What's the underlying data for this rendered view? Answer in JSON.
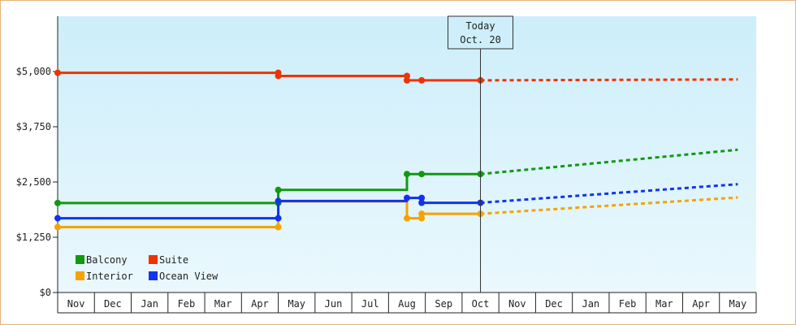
{
  "chart_data": {
    "type": "line",
    "ylim": [
      0,
      6250
    ],
    "y_ticks": [
      {
        "value": 0,
        "label": "$0"
      },
      {
        "value": 1250,
        "label": "$1,250"
      },
      {
        "value": 2500,
        "label": "$2,500"
      },
      {
        "value": 3750,
        "label": "$3,750"
      },
      {
        "value": 5000,
        "label": "$5,000"
      }
    ],
    "x_labels": [
      "Nov",
      "Dec",
      "Jan",
      "Feb",
      "Mar",
      "Apr",
      "May",
      "Jun",
      "Jul",
      "Aug",
      "Sep",
      "Oct",
      "Nov",
      "Dec",
      "Jan",
      "Feb",
      "Mar",
      "Apr",
      "May"
    ],
    "today": {
      "line1": "Today",
      "line2": "Oct. 20",
      "x": 11.5
    },
    "grid": false,
    "legend_position": "bottom-left",
    "background_gradient": [
      "#cdeefa",
      "#eaf8fd"
    ],
    "series": [
      {
        "name": "Balcony",
        "color": "#119911",
        "actual": [
          [
            0,
            2025
          ],
          [
            6,
            2025
          ],
          [
            6,
            2320
          ],
          [
            9.5,
            2320
          ],
          [
            9.5,
            2680
          ],
          [
            9.9,
            2680
          ],
          [
            11.5,
            2680
          ]
        ],
        "markers": [
          [
            0,
            2025
          ],
          [
            6,
            2025
          ],
          [
            6,
            2320
          ],
          [
            9.5,
            2680
          ],
          [
            9.9,
            2680
          ],
          [
            11.5,
            2680
          ]
        ],
        "forecast": [
          [
            11.5,
            2680
          ],
          [
            18.5,
            3230
          ]
        ]
      },
      {
        "name": "Suite",
        "color": "#ee3300",
        "actual": [
          [
            0,
            4970
          ],
          [
            6,
            4970
          ],
          [
            6,
            4900
          ],
          [
            9.5,
            4900
          ],
          [
            9.5,
            4800
          ],
          [
            9.9,
            4800
          ],
          [
            11.5,
            4800
          ]
        ],
        "markers": [
          [
            0,
            4970
          ],
          [
            6,
            4970
          ],
          [
            6,
            4900
          ],
          [
            9.5,
            4900
          ],
          [
            9.5,
            4800
          ],
          [
            9.9,
            4800
          ],
          [
            11.5,
            4800
          ]
        ],
        "forecast": [
          [
            11.5,
            4800
          ],
          [
            18.5,
            4820
          ]
        ]
      },
      {
        "name": "Interior",
        "color": "#f5a300",
        "actual": [
          [
            0,
            1480
          ],
          [
            6,
            1480
          ],
          [
            6,
            2060
          ],
          [
            9.5,
            2060
          ],
          [
            9.5,
            1680
          ],
          [
            9.9,
            1680
          ],
          [
            9.9,
            1780
          ],
          [
            11.5,
            1780
          ]
        ],
        "markers": [
          [
            0,
            1480
          ],
          [
            6,
            1480
          ],
          [
            9.5,
            1680
          ],
          [
            9.9,
            1680
          ],
          [
            9.9,
            1780
          ],
          [
            11.5,
            1780
          ]
        ],
        "forecast": [
          [
            11.5,
            1780
          ],
          [
            18.5,
            2150
          ]
        ]
      },
      {
        "name": "Ocean View",
        "color": "#1133ee",
        "actual": [
          [
            0,
            1680
          ],
          [
            6,
            1680
          ],
          [
            6,
            2070
          ],
          [
            9.5,
            2070
          ],
          [
            9.5,
            2140
          ],
          [
            9.9,
            2140
          ],
          [
            9.9,
            2030
          ],
          [
            11.5,
            2030
          ]
        ],
        "markers": [
          [
            0,
            1680
          ],
          [
            6,
            1680
          ],
          [
            6,
            2070
          ],
          [
            9.5,
            2140
          ],
          [
            9.9,
            2140
          ],
          [
            9.9,
            2030
          ],
          [
            11.5,
            2030
          ]
        ],
        "forecast": [
          [
            11.5,
            2030
          ],
          [
            18.5,
            2450
          ]
        ]
      }
    ],
    "legend_order": [
      "Balcony",
      "Suite",
      "Interior",
      "Ocean View"
    ]
  }
}
